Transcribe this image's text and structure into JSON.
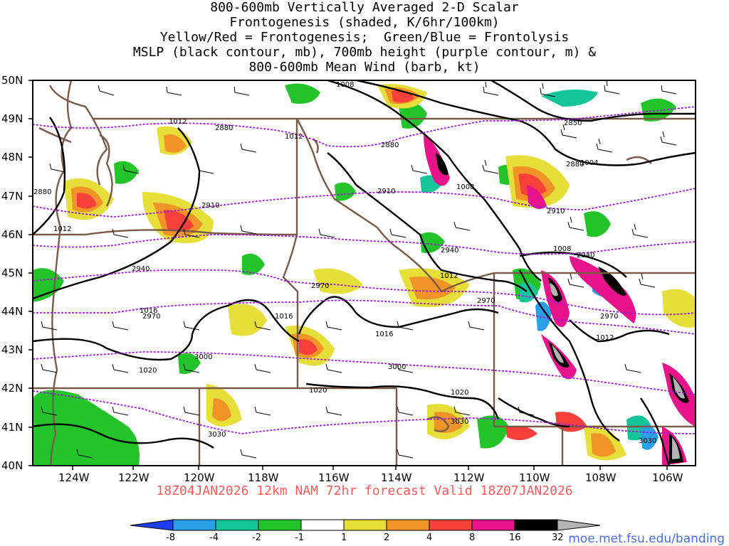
{
  "title": {
    "line1": "800-600mb Vertically Averaged 2-D Scalar",
    "line2": "Frontogenesis (shaded, K/6hr/100km)",
    "line3": "Yellow/Red = Frontogenesis;  Green/Blue = Frontolysis",
    "line4": "MSLP (black contour, mb), 700mb height (purple contour, m) &",
    "line5": "800-600mb Mean Wind (barb, kt)"
  },
  "valid_line": "18Z04JAN2026 12km NAM 72hr forecast Valid 18Z07JAN2026",
  "credit": "moe.met.fsu.edu/banding",
  "axes": {
    "lat_labels": [
      "50N",
      "49N",
      "48N",
      "47N",
      "46N",
      "45N",
      "44N",
      "43N",
      "42N",
      "41N",
      "40N"
    ],
    "lon_labels": [
      "124W",
      "122W",
      "120W",
      "118W",
      "116W",
      "114W",
      "112W",
      "110W",
      "108W",
      "106W"
    ],
    "lat_range": [
      40,
      50
    ],
    "lon_range": [
      -125,
      -105
    ]
  },
  "colors": {
    "border": "#7a5a48",
    "mslp_contour": "#000000",
    "height_contour": "#9a1fd0",
    "frontolysis_strong": "#1a7fe0",
    "frontolysis_moderate": "#16c49a",
    "frontolysis_weak": "#22c42a",
    "frontogenesis_weak": "#e6df3a",
    "frontogenesis_moderate": "#f09428",
    "frontogenesis_strong": "#f5413a",
    "frontogenesis_very_strong": "#e8138a",
    "frontogenesis_extreme": "#000000",
    "frontogenesis_max": "#b4b4b4"
  },
  "colorbar": {
    "levels": [
      "-8",
      "-4",
      "-2",
      "-1",
      "1",
      "2",
      "4",
      "8",
      "16",
      "32"
    ],
    "colors": [
      "#1d3df0",
      "#2a9fe8",
      "#16c49a",
      "#18c06a",
      "#22c42a",
      "#ffffff",
      "#e6df3a",
      "#f09428",
      "#f5413a",
      "#e8138a",
      "#000000",
      "#b4b4b4"
    ]
  },
  "mslp_labels": [
    "1008",
    "1012",
    "1012",
    "1012",
    "1008",
    "1004",
    "1008",
    "1012",
    "1016",
    "1016",
    "1016",
    "1020",
    "1020",
    "1020",
    "1012"
  ],
  "height_labels": [
    "2880",
    "2880",
    "2880",
    "2850",
    "2880",
    "2910",
    "2910",
    "2910",
    "2940",
    "2940",
    "2940",
    "2970",
    "2970",
    "2970",
    "2970",
    "3000",
    "3000",
    "3030",
    "3030",
    "3030"
  ],
  "chart_data": {
    "type": "heatmap",
    "title": "800-600mb Vertically Averaged 2-D Scalar Frontogenesis (shaded, K/6hr/100km)",
    "units": "K/6hr/100km",
    "lat_range": [
      40,
      50
    ],
    "lon_range": [
      -125,
      -105
    ],
    "color_levels": [
      -8,
      -4,
      -2,
      -1,
      1,
      2,
      4,
      8,
      16,
      32
    ],
    "mslp_contour_values_mb": [
      1004,
      1008,
      1012,
      1016,
      1020
    ],
    "height_contour_values_m": [
      2850,
      2880,
      2910,
      2940,
      2970,
      3000,
      3030
    ]
  }
}
